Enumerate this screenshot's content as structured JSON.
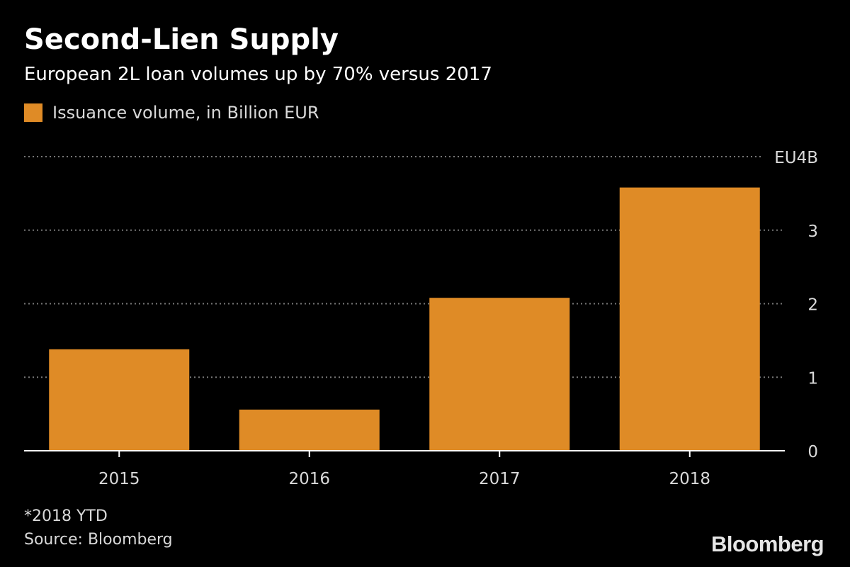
{
  "header": {
    "title": "Second-Lien Supply",
    "subtitle": "European 2L loan volumes up by 70% versus 2017"
  },
  "colors": {
    "background": "#000000",
    "bar": "#df8b26",
    "grid": "#777777",
    "text": "#ffffff",
    "muted_text": "#d9d9d9"
  },
  "chart_data": {
    "type": "bar",
    "title": "Second-Lien Supply",
    "subtitle": "European 2L loan volumes up by 70% versus 2017",
    "categories": [
      "2015",
      "2016",
      "2017",
      "2018"
    ],
    "series": [
      {
        "name": "Issuance volume, in Billion EUR",
        "values": [
          1.38,
          0.56,
          2.08,
          3.58
        ]
      }
    ],
    "ylim": [
      0,
      4
    ],
    "yticks": [
      0,
      1,
      2,
      3,
      4
    ],
    "ytick_labels": [
      "0",
      "1",
      "2",
      "3",
      "EU4B"
    ],
    "y_axis_side": "right",
    "grid": true,
    "legend_position": "top-left"
  },
  "footer": {
    "footnote": "*2018 YTD",
    "source": "Source: Bloomberg",
    "logo": "Bloomberg"
  }
}
